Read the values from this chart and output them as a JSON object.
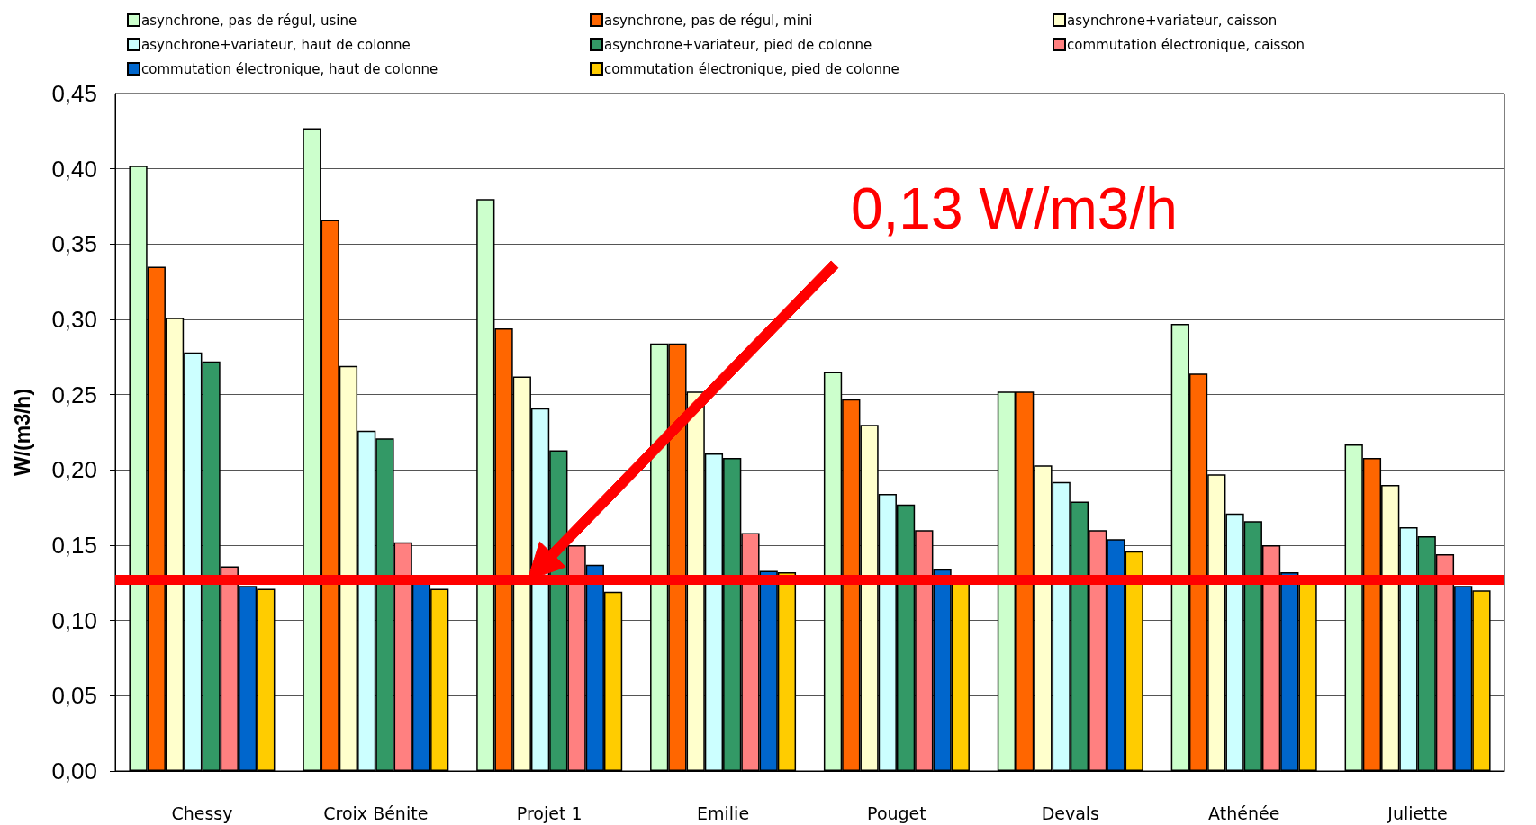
{
  "chart_data": {
    "type": "bar",
    "ylabel": "W/(m3/h)",
    "categories": [
      "Chessy",
      "Croix Bénite",
      "Projet 1",
      "Emilie",
      "Pouget",
      "Devals",
      "Athénée",
      "Juliette"
    ],
    "series": [
      {
        "name": "asynchrone, pas de régul, usine",
        "color": "#ccffcc",
        "values": [
          0.402,
          0.427,
          0.38,
          0.284,
          0.265,
          0.252,
          0.297,
          0.217
        ]
      },
      {
        "name": "asynchrone, pas de régul, mini",
        "color": "#ff6600",
        "values": [
          0.335,
          0.366,
          0.294,
          0.284,
          0.247,
          0.252,
          0.264,
          0.208
        ]
      },
      {
        "name": "asynchrone+variateur, caisson",
        "color": "#ffffcc",
        "values": [
          0.301,
          0.269,
          0.262,
          0.252,
          0.23,
          0.203,
          0.197,
          0.19
        ]
      },
      {
        "name": "asynchrone+variateur, haut de colonne",
        "color": "#ccffff",
        "values": [
          0.278,
          0.226,
          0.241,
          0.211,
          0.184,
          0.192,
          0.171,
          0.162
        ]
      },
      {
        "name": "asynchrone+variateur, pied de colonne",
        "color": "#339966",
        "values": [
          0.272,
          0.221,
          0.213,
          0.208,
          0.177,
          0.179,
          0.166,
          0.156
        ]
      },
      {
        "name": "commutation électronique, caisson",
        "color": "#ff8080",
        "values": [
          0.136,
          0.152,
          0.15,
          0.158,
          0.16,
          0.16,
          0.15,
          0.144
        ]
      },
      {
        "name": "commutation électronique, haut de colonne",
        "color": "#0066cc",
        "values": [
          0.123,
          0.125,
          0.137,
          0.133,
          0.134,
          0.154,
          0.132,
          0.123
        ]
      },
      {
        "name": "commutation électronique, pied de colonne",
        "color": "#ffcc00",
        "values": [
          0.121,
          0.121,
          0.119,
          0.132,
          0.125,
          0.146,
          0.125,
          0.12
        ]
      }
    ],
    "ylim": [
      0,
      0.45
    ],
    "yticks": [
      {
        "value": 0,
        "label": "0,00"
      },
      {
        "value": 0.05,
        "label": "0,05"
      },
      {
        "value": 0.1,
        "label": "0,10"
      },
      {
        "value": 0.15,
        "label": "0,15"
      },
      {
        "value": 0.2,
        "label": "0,20"
      },
      {
        "value": 0.25,
        "label": "0,25"
      },
      {
        "value": 0.3,
        "label": "0,30"
      },
      {
        "value": 0.35,
        "label": "0,35"
      },
      {
        "value": 0.4,
        "label": "0,40"
      },
      {
        "value": 0.45,
        "label": "0,45"
      }
    ],
    "ref_lines": [
      {
        "axis": "y",
        "value": 0.127,
        "color": "#ff0000"
      }
    ],
    "annotations": [
      "0,13 W/m3/h"
    ],
    "grid": "y",
    "legend": "top"
  }
}
